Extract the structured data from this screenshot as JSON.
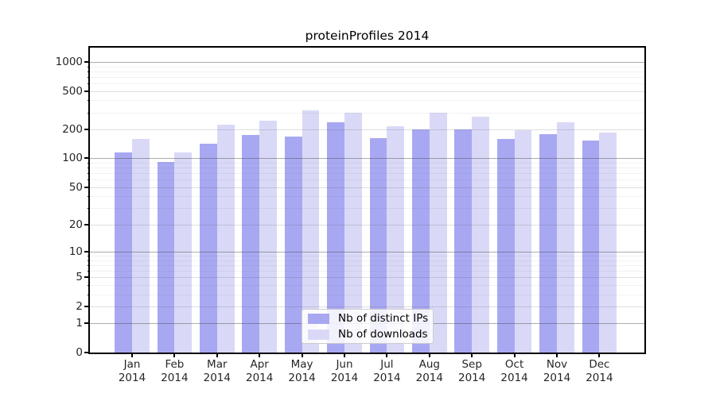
{
  "title": "proteinProfiles 2014",
  "legend": {
    "items": [
      {
        "label": "Nb of distinct IPs",
        "series": "ips"
      },
      {
        "label": "Nb of downloads",
        "series": "downloads"
      }
    ]
  },
  "colors": {
    "ips_bar": "#a8a8f2",
    "downloads_bar": "#d9d9f7",
    "grid_major": "rgba(70,70,70,0.45)",
    "grid_mid": "rgba(70,70,70,0.18)",
    "grid_minor": "rgba(70,70,70,0.07)",
    "axis": "#000000",
    "tick_label": "#262626"
  },
  "chart_data": {
    "type": "bar",
    "title": "proteinProfiles 2014",
    "categories": [
      "Jan",
      "Feb",
      "Mar",
      "Apr",
      "May",
      "Jun",
      "Jul",
      "Aug",
      "Sep",
      "Oct",
      "Nov",
      "Dec"
    ],
    "year": "2014",
    "series": [
      {
        "name": "Nb of distinct IPs",
        "key": "ips",
        "values": [
          116,
          92,
          143,
          174,
          169,
          237,
          162,
          202,
          200,
          159,
          178,
          152
        ]
      },
      {
        "name": "Nb of downloads",
        "key": "downloads",
        "values": [
          160,
          115,
          225,
          245,
          314,
          299,
          214,
          297,
          273,
          195,
          238,
          187
        ]
      }
    ],
    "xlabel": "",
    "ylabel": "",
    "y_scale": "log1p",
    "y_ticks": [
      0,
      1,
      2,
      5,
      10,
      20,
      50,
      100,
      200,
      500,
      1000
    ],
    "y_minor_ticks": [
      3,
      4,
      6,
      7,
      8,
      9,
      30,
      40,
      60,
      70,
      80,
      90,
      300,
      400,
      600,
      700,
      800,
      900
    ],
    "y_axis_top": 1404,
    "ylim": [
      0,
      1404
    ],
    "grid": true,
    "legend_position": "lower center"
  }
}
